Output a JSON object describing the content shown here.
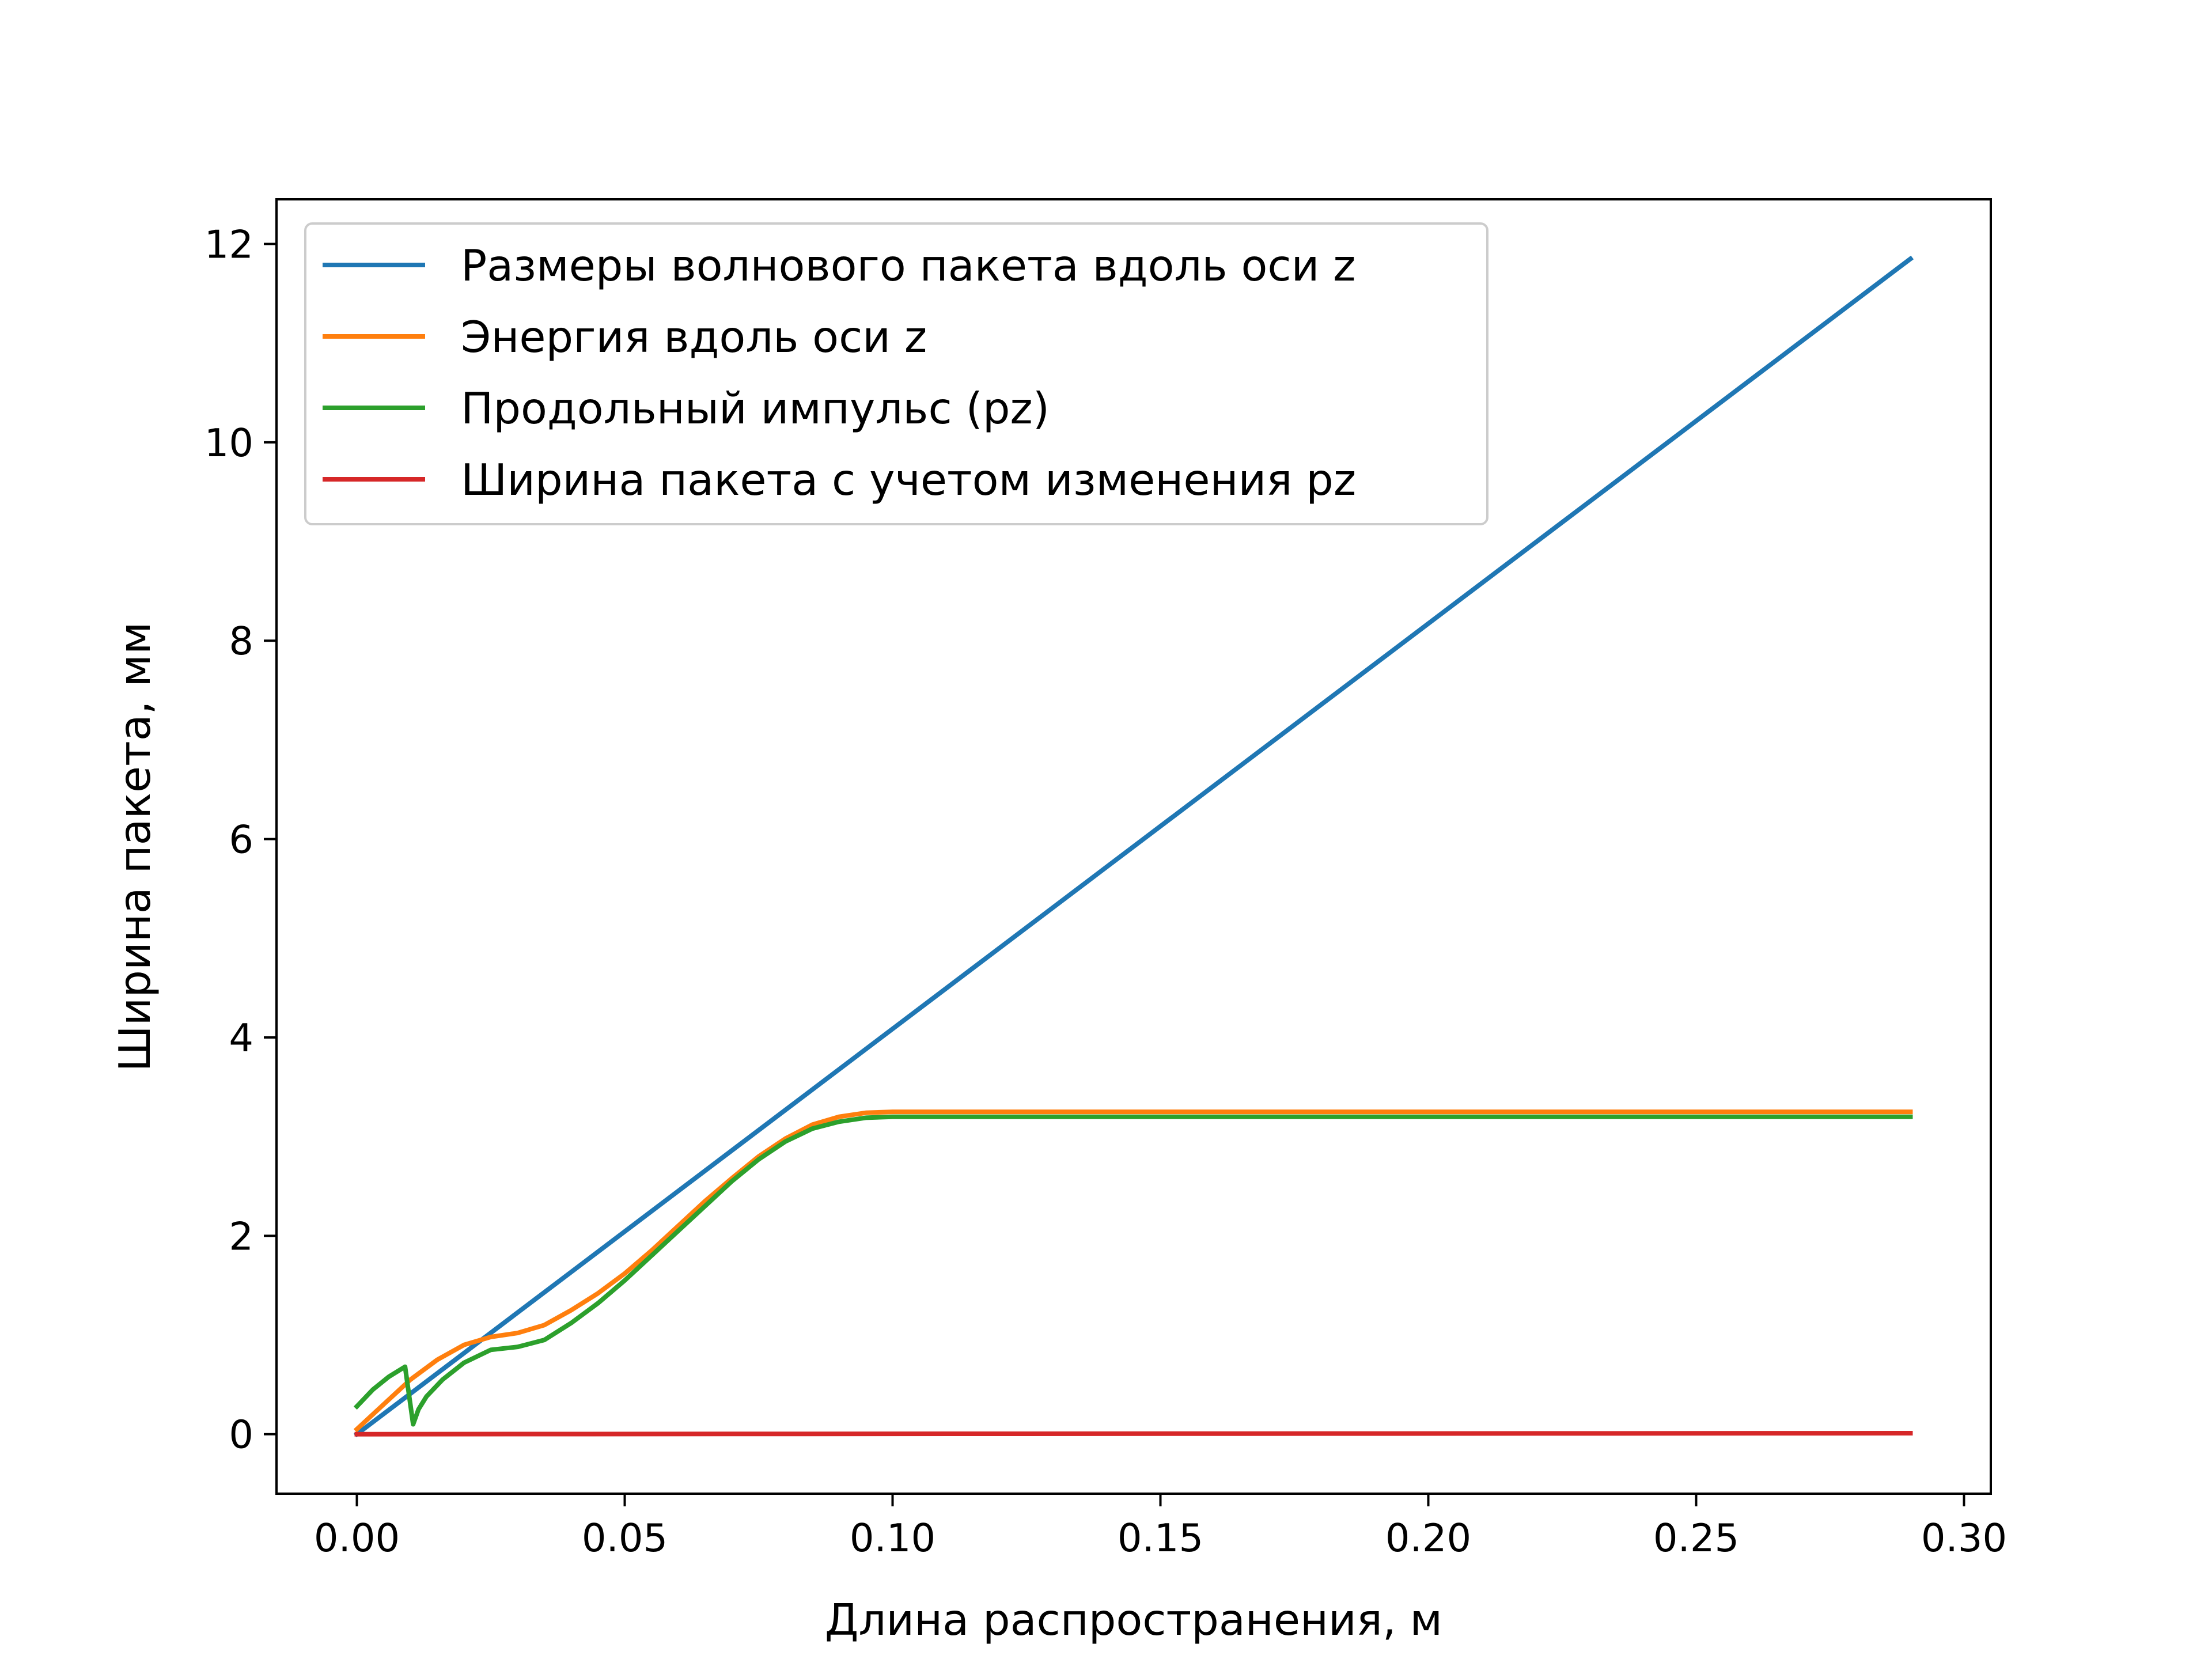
{
  "chart_data": {
    "type": "line",
    "title": "",
    "xlabel": "Длина распространения, м",
    "ylabel": "Ширина пакета, мм",
    "xlim": [
      -0.015,
      0.305
    ],
    "ylim": [
      -0.6,
      12.45
    ],
    "x_ticks": [
      0.0,
      0.05,
      0.1,
      0.15,
      0.2,
      0.25,
      0.3
    ],
    "x_tick_labels": [
      "0.00",
      "0.05",
      "0.10",
      "0.15",
      "0.20",
      "0.25",
      "0.30"
    ],
    "y_ticks": [
      0,
      2,
      4,
      6,
      8,
      10,
      12
    ],
    "y_tick_labels": [
      "0",
      "2",
      "4",
      "6",
      "8",
      "10",
      "12"
    ],
    "grid": false,
    "legend_position": "top-left",
    "series": [
      {
        "name": "Размеры волнового пакета вдоль оси z",
        "color": "#1f77b4",
        "x": [
          0.0,
          0.29
        ],
        "y": [
          0.0,
          11.85
        ]
      },
      {
        "name": "Энергия вдоль оси z",
        "color": "#ff7f0e",
        "x": [
          0.0,
          0.005,
          0.01,
          0.015,
          0.02,
          0.025,
          0.03,
          0.035,
          0.04,
          0.045,
          0.05,
          0.055,
          0.06,
          0.065,
          0.07,
          0.075,
          0.08,
          0.085,
          0.09,
          0.095,
          0.1,
          0.105,
          0.11,
          0.12,
          0.15,
          0.2,
          0.25,
          0.29
        ],
        "y": [
          0.05,
          0.3,
          0.55,
          0.75,
          0.9,
          0.98,
          1.02,
          1.1,
          1.25,
          1.42,
          1.62,
          1.85,
          2.1,
          2.35,
          2.58,
          2.8,
          2.98,
          3.12,
          3.2,
          3.24,
          3.25,
          3.25,
          3.25,
          3.25,
          3.25,
          3.25,
          3.25,
          3.25
        ]
      },
      {
        "name": "Продольный импульс (pz)",
        "color": "#2ca02c",
        "x": [
          0.0,
          0.003,
          0.006,
          0.009,
          0.0105,
          0.0115,
          0.013,
          0.016,
          0.02,
          0.025,
          0.03,
          0.035,
          0.04,
          0.045,
          0.05,
          0.055,
          0.06,
          0.065,
          0.07,
          0.075,
          0.08,
          0.085,
          0.09,
          0.095,
          0.1,
          0.105,
          0.11,
          0.12,
          0.15,
          0.2,
          0.25,
          0.29
        ],
        "y": [
          0.28,
          0.45,
          0.58,
          0.68,
          0.1,
          0.25,
          0.38,
          0.55,
          0.72,
          0.85,
          0.88,
          0.95,
          1.12,
          1.32,
          1.55,
          1.8,
          2.05,
          2.3,
          2.55,
          2.77,
          2.95,
          3.08,
          3.15,
          3.19,
          3.2,
          3.2,
          3.2,
          3.2,
          3.2,
          3.2,
          3.2,
          3.2
        ]
      },
      {
        "name": "Ширина пакета с учетом изменения pz",
        "color": "#d62728",
        "x": [
          0.0,
          0.29
        ],
        "y": [
          0.0,
          0.01
        ]
      }
    ]
  }
}
